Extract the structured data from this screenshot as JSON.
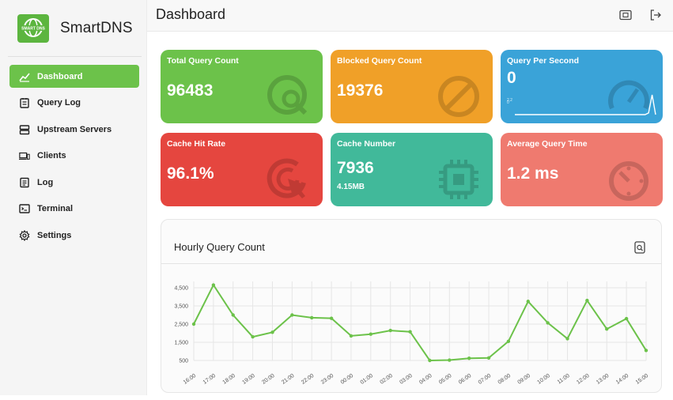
{
  "app": {
    "name": "SmartDNS",
    "logo_text": "SMART DNS"
  },
  "header": {
    "title": "Dashboard"
  },
  "nav": [
    {
      "label": "Dashboard",
      "icon": "dashboard-chart-icon",
      "active": true
    },
    {
      "label": "Query Log",
      "icon": "list-doc-icon"
    },
    {
      "label": "Upstream Servers",
      "icon": "server-icon"
    },
    {
      "label": "Clients",
      "icon": "devices-icon"
    },
    {
      "label": "Log",
      "icon": "log-doc-icon"
    },
    {
      "label": "Terminal",
      "icon": "terminal-icon"
    },
    {
      "label": "Settings",
      "icon": "gear-icon"
    }
  ],
  "cards": {
    "total_query_count": {
      "title": "Total Query Count",
      "value": "96483",
      "color": "#6cc24a"
    },
    "blocked_query_count": {
      "title": "Blocked Query Count",
      "value": "19376",
      "color": "#f0a028"
    },
    "query_per_second": {
      "title": "Query Per Second",
      "value": "0",
      "color": "#3aa3d8"
    },
    "cache_hit_rate": {
      "title": "Cache Hit Rate",
      "value": "96.1%",
      "color": "#e5463f"
    },
    "cache_number": {
      "title": "Cache Number",
      "value": "7936",
      "sub": "4.15MB",
      "color": "#41b99a"
    },
    "average_query_time": {
      "title": "Average Query Time",
      "value": "1.2 ms",
      "color": "#ef7a6f"
    }
  },
  "qps_sparkline": {
    "yticks": [
      "0",
      "2.2"
    ],
    "values": [
      0,
      0,
      0,
      0,
      0,
      0,
      0,
      0,
      0,
      0,
      0,
      0,
      0,
      0,
      0,
      0,
      0,
      0,
      0,
      0,
      0,
      0,
      0,
      0,
      0,
      0,
      0,
      0,
      0,
      0,
      0,
      0,
      0,
      0,
      0,
      0,
      0,
      0,
      0.2,
      2.4,
      0
    ]
  },
  "panel": {
    "title": "Hourly Query Count"
  },
  "chart_data": {
    "type": "line",
    "title": "Hourly Query Count",
    "categories": [
      "16:00",
      "17:00",
      "18:00",
      "19:00",
      "20:00",
      "21:00",
      "22:00",
      "23:00",
      "00:00",
      "01:00",
      "02:00",
      "03:00",
      "04:00",
      "05:00",
      "06:00",
      "07:00",
      "08:00",
      "09:00",
      "10:00",
      "11:00",
      "12:00",
      "13:00",
      "14:00",
      "15:00"
    ],
    "series": [
      {
        "values": [
          2500,
          4650,
          3000,
          1800,
          2050,
          3000,
          2850,
          2820,
          1850,
          1950,
          2150,
          2080,
          500,
          520,
          620,
          640,
          1550,
          3750,
          2570,
          1700,
          3800,
          2230,
          2800,
          1050
        ]
      }
    ],
    "yticks": [
      "500",
      "1,500",
      "2,500",
      "3,500",
      "4,500"
    ],
    "ylim": [
      0,
      5000
    ],
    "grid": true,
    "line_color": "#6cc24a"
  }
}
